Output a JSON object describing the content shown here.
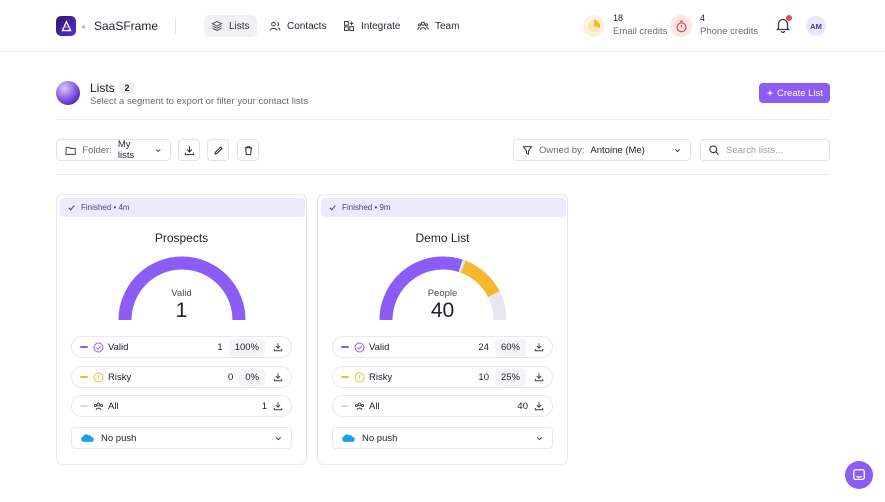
{
  "app": {
    "brand": "SaaSFrame",
    "avatar_initials": "AM"
  },
  "nav": [
    {
      "label": "Lists",
      "icon": "layers-icon",
      "active": true
    },
    {
      "label": "Contacts",
      "icon": "users-icon",
      "active": false
    },
    {
      "label": "Integrate",
      "icon": "integrate-icon",
      "active": false
    },
    {
      "label": "Team",
      "icon": "team-icon",
      "active": false
    }
  ],
  "credits": {
    "email": {
      "value": "18",
      "label": "Email credits",
      "color": "#f5b82e"
    },
    "phone": {
      "value": "4",
      "label": "Phone credits",
      "color": "#e5484d"
    }
  },
  "header": {
    "title": "Lists",
    "count": "2",
    "subtitle": "Select a segment to export or filter your contact lists",
    "create_label": "Create List"
  },
  "toolbar": {
    "folder_prefix": "Folder:",
    "folder_value": "My lists",
    "owned_prefix": "Owned by:",
    "owned_value": "Antoine (Me)",
    "search_placeholder": "Search lists..."
  },
  "colors": {
    "accent": "#8b5cf6",
    "valid": "#8b5cf6",
    "risky": "#f5b82e",
    "all": "#d9d9e3"
  },
  "lists": [
    {
      "status": "Finished • 4m",
      "title": "Prospects",
      "gauge_label": "Valid",
      "gauge_value": "1",
      "gauge_segments": {
        "valid": 1.0,
        "risky": 0.0
      },
      "rows": [
        {
          "name": "Valid",
          "count": "1",
          "percent": "100%"
        },
        {
          "name": "Risky",
          "count": "0",
          "percent": "0%"
        },
        {
          "name": "All",
          "count": "1"
        }
      ],
      "push": "No push"
    },
    {
      "status": "Finished • 9m",
      "title": "Demo List",
      "gauge_label": "People",
      "gauge_value": "40",
      "gauge_segments": {
        "valid": 0.6,
        "risky": 0.25
      },
      "rows": [
        {
          "name": "Valid",
          "count": "24",
          "percent": "60%"
        },
        {
          "name": "Risky",
          "count": "10",
          "percent": "25%"
        },
        {
          "name": "All",
          "count": "40"
        }
      ],
      "push": "No push"
    }
  ]
}
